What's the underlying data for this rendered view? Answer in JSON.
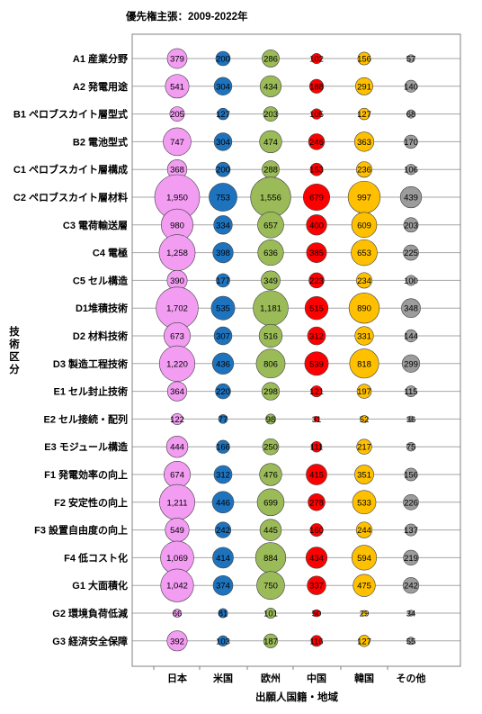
{
  "chart_data": {
    "type": "bubble",
    "title": "優先権主張：2009-2022年",
    "xlabel": "出願人国籍・地域",
    "ylabel": "技術区分",
    "columns": [
      "日本",
      "米国",
      "欧州",
      "中国",
      "韓国",
      "その他"
    ],
    "colors": {
      "日本": "#f29cf2",
      "米国": "#1e73be",
      "欧州": "#9bbb59",
      "中国": "#ff0000",
      "韓国": "#ffc000",
      "その他": "#9c9c9c"
    },
    "rows": [
      {
        "label": "A1 産業分野",
        "values": [
          379,
          200,
          286,
          102,
          156,
          57
        ]
      },
      {
        "label": "A2 発電用途",
        "values": [
          541,
          304,
          434,
          188,
          291,
          140
        ]
      },
      {
        "label": "B1 ペロブスカイト層型式",
        "values": [
          205,
          127,
          203,
          105,
          127,
          68
        ]
      },
      {
        "label": "B2 電池型式",
        "values": [
          747,
          304,
          474,
          246,
          363,
          170
        ]
      },
      {
        "label": "C1 ペロブスカイト層構成",
        "values": [
          368,
          200,
          288,
          153,
          236,
          106
        ]
      },
      {
        "label": "C2 ペロブスカイト層材料",
        "values": [
          1950,
          753,
          1556,
          679,
          997,
          439
        ]
      },
      {
        "label": "C3 電荷輸送層",
        "values": [
          980,
          334,
          657,
          400,
          609,
          203
        ]
      },
      {
        "label": "C4 電極",
        "values": [
          1258,
          398,
          636,
          385,
          653,
          225
        ]
      },
      {
        "label": "C5 セル構造",
        "values": [
          390,
          177,
          349,
          223,
          234,
          100
        ]
      },
      {
        "label": "D1堆積技術",
        "values": [
          1702,
          535,
          1181,
          515,
          890,
          348
        ]
      },
      {
        "label": "D2 材料技術",
        "values": [
          673,
          307,
          516,
          312,
          331,
          144
        ]
      },
      {
        "label": "D3 製造工程技術",
        "values": [
          1220,
          436,
          806,
          539,
          818,
          299
        ]
      },
      {
        "label": "E1 セル封止技術",
        "values": [
          364,
          220,
          298,
          121,
          197,
          115
        ]
      },
      {
        "label": "E2 セル接続・配列",
        "values": [
          122,
          77,
          98,
          31,
          52,
          36
        ]
      },
      {
        "label": "E3 モジュール構造",
        "values": [
          444,
          166,
          250,
          111,
          217,
          75
        ]
      },
      {
        "label": "F1 発電効率の向上",
        "values": [
          674,
          312,
          476,
          415,
          351,
          156
        ]
      },
      {
        "label": "F2 安定性の向上",
        "values": [
          1211,
          446,
          699,
          278,
          533,
          226
        ]
      },
      {
        "label": "F3 設置自由度の向上",
        "values": [
          549,
          242,
          445,
          160,
          244,
          137
        ]
      },
      {
        "label": "F4 低コスト化",
        "values": [
          1069,
          414,
          884,
          434,
          594,
          219
        ]
      },
      {
        "label": "G1 大面積化",
        "values": [
          1042,
          374,
          750,
          337,
          475,
          242
        ]
      },
      {
        "label": "G2 環境負荷低減",
        "values": [
          66,
          81,
          101,
          50,
          29,
          34
        ]
      },
      {
        "label": "G3 経済安全保障",
        "values": [
          392,
          103,
          187,
          116,
          127,
          55
        ]
      }
    ]
  }
}
